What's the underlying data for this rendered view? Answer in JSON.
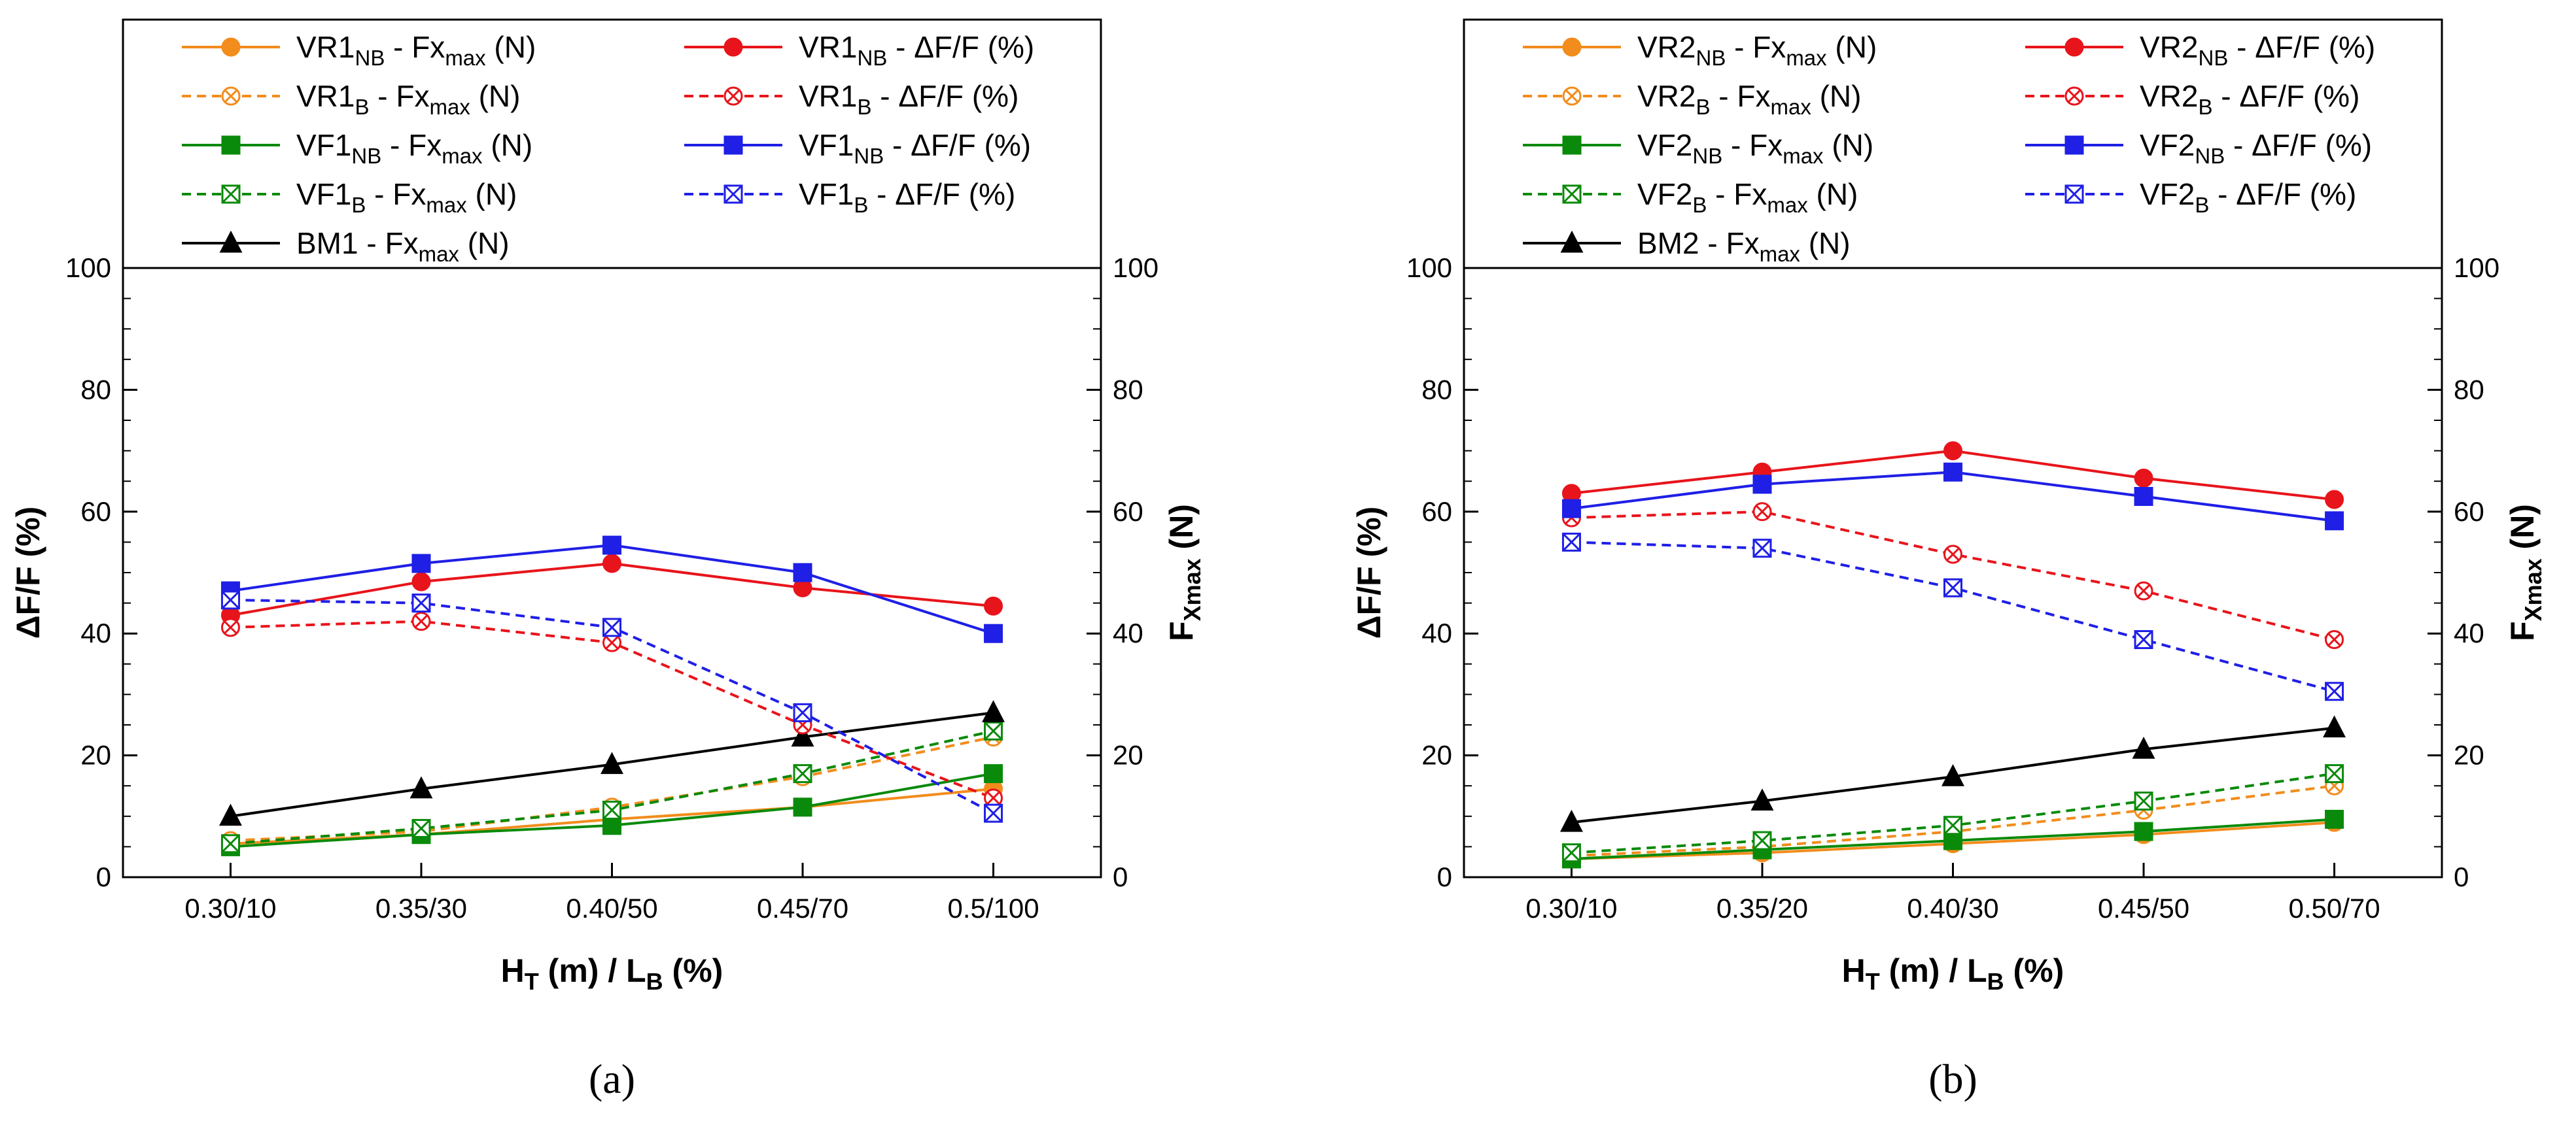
{
  "chart_data": [
    {
      "type": "line",
      "panel_label": "(a)",
      "categories": [
        "0.30/10",
        "0.35/30",
        "0.40/50",
        "0.45/70",
        "0.5/100"
      ],
      "xlabel": {
        "main": "H",
        "sub": "T",
        "rest": " (m) / L",
        "sub2": "B",
        "tail": " (%)"
      },
      "ylabel_left": "ΔF/F (%)",
      "ylabel_right": {
        "main": "F",
        "sub": "Xmax",
        "tail": " (N)"
      },
      "ylim_left": [
        0,
        100
      ],
      "ylim_right": [
        0,
        100
      ],
      "yticks": [
        0,
        20,
        40,
        60,
        80,
        100
      ],
      "grid": false,
      "legend_position": "top",
      "series": [
        {
          "name_main": "VR1",
          "name_sub": "NB",
          "name_mid": " - Fx",
          "name_sub2": "max",
          "name_tail": " (N)",
          "color": "#f28c1c",
          "dash": false,
          "marker": "circle",
          "axis": "right",
          "values": [
            5.5,
            7,
            9.5,
            11.5,
            14.5
          ]
        },
        {
          "name_main": "VR1",
          "name_sub": "B",
          "name_mid": "  - Fx",
          "name_sub2": "max",
          "name_tail": " (N)",
          "color": "#f28c1c",
          "dash": true,
          "marker": "crossed-circle",
          "axis": "right",
          "values": [
            6,
            7.5,
            11.5,
            16.5,
            23
          ]
        },
        {
          "name_main": "VF1",
          "name_sub": "NB",
          "name_mid": " - Fx",
          "name_sub2": "max",
          "name_tail": " (N)",
          "color": "#0a8a0a",
          "dash": false,
          "marker": "square",
          "axis": "right",
          "values": [
            5,
            7,
            8.5,
            11.5,
            17
          ]
        },
        {
          "name_main": "VF1",
          "name_sub": "B",
          "name_mid": "  - Fx",
          "name_sub2": "max",
          "name_tail": " (N)",
          "color": "#0a8a0a",
          "dash": true,
          "marker": "crossed-square",
          "axis": "right",
          "values": [
            5.5,
            8,
            11,
            17,
            24
          ]
        },
        {
          "name_main": "BM1",
          "name_sub": "",
          "name_mid": " - Fx",
          "name_sub2": "max",
          "name_tail": " (N)",
          "color": "#000000",
          "dash": false,
          "marker": "triangle",
          "axis": "right",
          "values": [
            10,
            14.5,
            18.5,
            23,
            27
          ]
        },
        {
          "name_main": "VR1",
          "name_sub": "NB",
          "name_mid": " - ΔF/F (%)",
          "name_sub2": "",
          "name_tail": "",
          "color": "#e8141b",
          "dash": false,
          "marker": "circle",
          "axis": "left",
          "values": [
            43,
            48.5,
            51.5,
            47.5,
            44.5
          ]
        },
        {
          "name_main": "VR1",
          "name_sub": "B",
          "name_mid": "  - ΔF/F (%)",
          "name_sub2": "",
          "name_tail": "",
          "color": "#e8141b",
          "dash": true,
          "marker": "crossed-circle",
          "axis": "left",
          "values": [
            41,
            42,
            38.5,
            25,
            13
          ]
        },
        {
          "name_main": "VF1",
          "name_sub": "NB",
          "name_mid": " - ΔF/F (%)",
          "name_sub2": "",
          "name_tail": "",
          "color": "#1f1fe6",
          "dash": false,
          "marker": "square",
          "axis": "left",
          "values": [
            47,
            51.5,
            54.5,
            50,
            40
          ]
        },
        {
          "name_main": "VF1",
          "name_sub": "B",
          "name_mid": "  - ΔF/F (%)",
          "name_sub2": "",
          "name_tail": "",
          "color": "#1f1fe6",
          "dash": true,
          "marker": "crossed-square",
          "axis": "left",
          "values": [
            45.5,
            45,
            41,
            27,
            10.5
          ]
        }
      ]
    },
    {
      "type": "line",
      "panel_label": "(b)",
      "categories": [
        "0.30/10",
        "0.35/20",
        "0.40/30",
        "0.45/50",
        "0.50/70"
      ],
      "xlabel": {
        "main": "H",
        "sub": "T",
        "rest": " (m) / L",
        "sub2": "B",
        "tail": " (%)"
      },
      "ylabel_left": "ΔF/F (%)",
      "ylabel_right": {
        "main": "F",
        "sub": "Xmax",
        "tail": " (N)"
      },
      "ylim_left": [
        0,
        100
      ],
      "ylim_right": [
        0,
        100
      ],
      "yticks": [
        0,
        20,
        40,
        60,
        80,
        100
      ],
      "grid": false,
      "legend_position": "top",
      "series": [
        {
          "name_main": "VR2",
          "name_sub": "NB",
          "name_mid": " - Fx",
          "name_sub2": "max",
          "name_tail": " (N)",
          "color": "#f28c1c",
          "dash": false,
          "marker": "circle",
          "axis": "right",
          "values": [
            3,
            4,
            5.5,
            7,
            9
          ]
        },
        {
          "name_main": "VR2",
          "name_sub": "B",
          "name_mid": "  - Fx",
          "name_sub2": "max",
          "name_tail": " (N)",
          "color": "#f28c1c",
          "dash": true,
          "marker": "crossed-circle",
          "axis": "right",
          "values": [
            3.5,
            5,
            7.5,
            11,
            15
          ]
        },
        {
          "name_main": "VF2",
          "name_sub": "NB",
          "name_mid": " - Fx",
          "name_sub2": "max",
          "name_tail": " (N)",
          "color": "#0a8a0a",
          "dash": false,
          "marker": "square",
          "axis": "right",
          "values": [
            3,
            4.5,
            6,
            7.5,
            9.5
          ]
        },
        {
          "name_main": "VF2",
          "name_sub": "B",
          "name_mid": "  - Fx",
          "name_sub2": "max",
          "name_tail": " (N)",
          "color": "#0a8a0a",
          "dash": true,
          "marker": "crossed-square",
          "axis": "right",
          "values": [
            4,
            6,
            8.5,
            12.5,
            17
          ]
        },
        {
          "name_main": "BM2",
          "name_sub": "",
          "name_mid": " - Fx",
          "name_sub2": "max",
          "name_tail": " (N)",
          "color": "#000000",
          "dash": false,
          "marker": "triangle",
          "axis": "right",
          "values": [
            9,
            12.5,
            16.5,
            21,
            24.5
          ]
        },
        {
          "name_main": "VR2",
          "name_sub": "NB",
          "name_mid": " - ΔF/F (%)",
          "name_sub2": "",
          "name_tail": "",
          "color": "#e8141b",
          "dash": false,
          "marker": "circle",
          "axis": "left",
          "values": [
            63,
            66.5,
            70,
            65.5,
            62
          ]
        },
        {
          "name_main": "VR2",
          "name_sub": "B",
          "name_mid": "  - ΔF/F (%)",
          "name_sub2": "",
          "name_tail": "",
          "color": "#e8141b",
          "dash": true,
          "marker": "crossed-circle",
          "axis": "left",
          "values": [
            59,
            60,
            53,
            47,
            39
          ]
        },
        {
          "name_main": "VF2",
          "name_sub": "NB",
          "name_mid": " - ΔF/F (%)",
          "name_sub2": "",
          "name_tail": "",
          "color": "#1f1fe6",
          "dash": false,
          "marker": "square",
          "axis": "left",
          "values": [
            60.5,
            64.5,
            66.5,
            62.5,
            58.5
          ]
        },
        {
          "name_main": "VF2",
          "name_sub": "B",
          "name_mid": "  - ΔF/F (%)",
          "name_sub2": "",
          "name_tail": "",
          "color": "#1f1fe6",
          "dash": true,
          "marker": "crossed-square",
          "axis": "left",
          "values": [
            55,
            54,
            47.5,
            39,
            30.5
          ]
        }
      ]
    }
  ]
}
